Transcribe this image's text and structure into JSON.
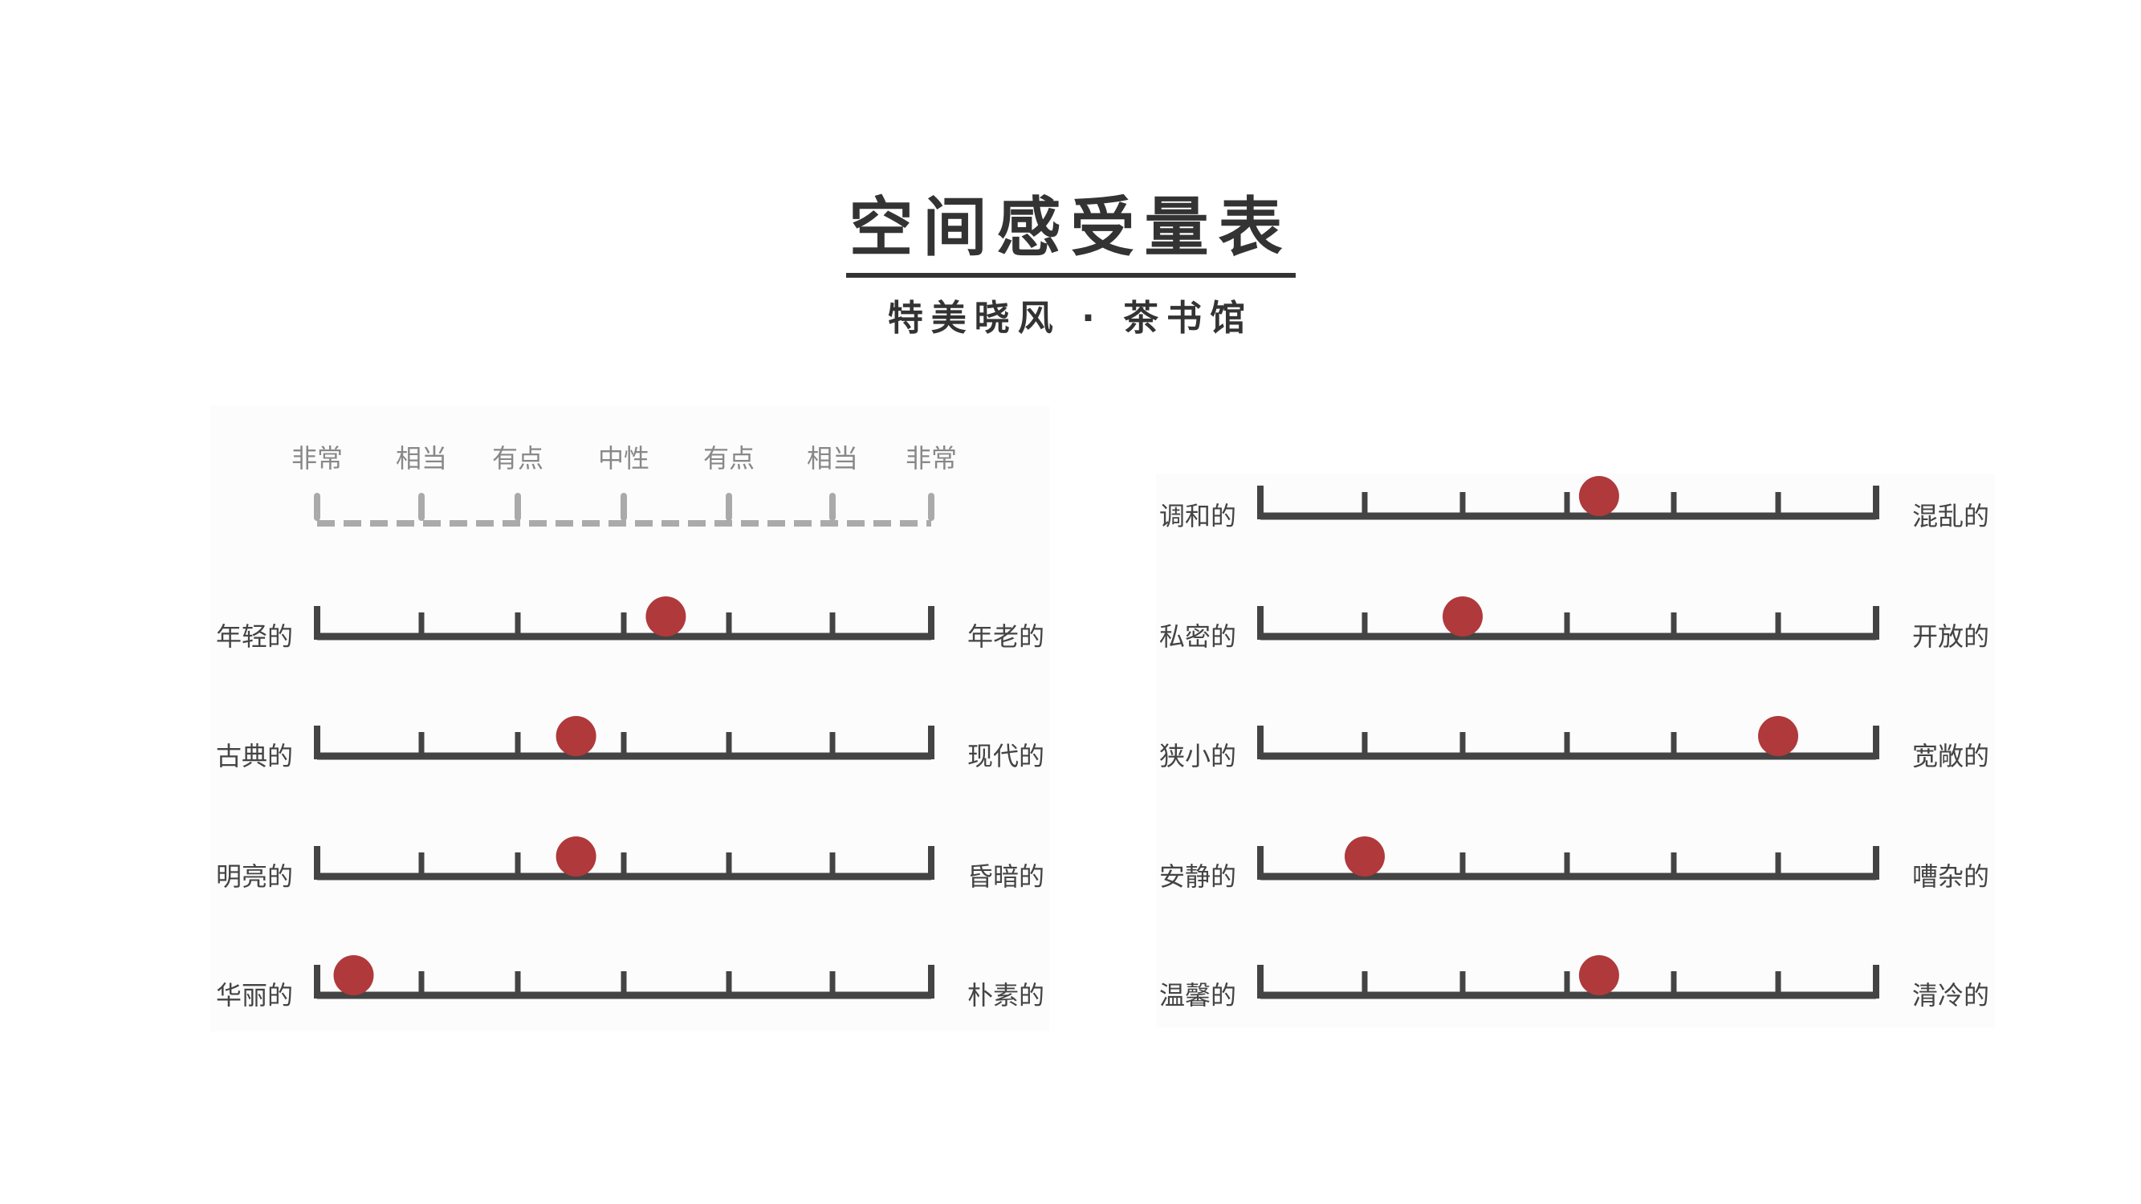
{
  "title": "空间感受量表",
  "subtitle": "特美晓风 · 茶书馆",
  "legend": [
    "非常",
    "相当",
    "有点",
    "中性",
    "有点",
    "相当",
    "非常"
  ],
  "marker_color": "#b0393b",
  "scale_steps": 7,
  "left_panel": [
    {
      "left": "年轻的",
      "right": "年老的",
      "position": 4.4
    },
    {
      "left": "古典的",
      "right": "现代的",
      "position": 3.55
    },
    {
      "left": "明亮的",
      "right": "昏暗的",
      "position": 3.55
    },
    {
      "left": "华丽的",
      "right": "朴素的",
      "position": 1.35
    }
  ],
  "right_panel": [
    {
      "left": "调和的",
      "right": "混乱的",
      "position": 4.3
    },
    {
      "left": "私密的",
      "right": "开放的",
      "position": 3.0
    },
    {
      "left": "狭小的",
      "right": "宽敞的",
      "position": 6.0
    },
    {
      "left": "安静的",
      "right": "嘈杂的",
      "position": 2.0
    },
    {
      "left": "温馨的",
      "right": "清冷的",
      "position": 4.3
    }
  ]
}
